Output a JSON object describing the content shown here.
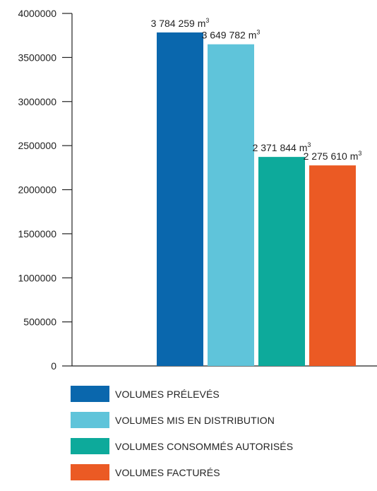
{
  "chart_data": {
    "type": "bar",
    "title": "",
    "xlabel": "",
    "ylabel": "",
    "ylim": [
      0,
      4000000
    ],
    "yticks": [
      0,
      500000,
      1000000,
      1500000,
      2000000,
      2500000,
      3000000,
      3500000,
      4000000
    ],
    "ytick_labels": [
      "0",
      "500000",
      "1000000",
      "1500000",
      "2000000",
      "2500000",
      "3000000",
      "3500000",
      "4000000"
    ],
    "legend_position": "bottom-left",
    "grid": false,
    "unit_suffix": "m",
    "unit_exponent": "3",
    "series": [
      {
        "name": "VOLUMES PRÉLEVÉS",
        "value": 3784259,
        "label": "3 784 259",
        "color": "#0a67ad"
      },
      {
        "name": "VOLUMES MIS EN DISTRIBUTION",
        "value": 3649782,
        "label": "3 649 782",
        "color": "#5fc4da"
      },
      {
        "name": "VOLUMES CONSOMMÉS AUTORISÉS",
        "value": 2371844,
        "label": "2 371 844",
        "color": "#0daa9b"
      },
      {
        "name": "VOLUMES FACTURÉS",
        "value": 2275610,
        "label": "2 275 610",
        "color": "#eb5a24"
      }
    ]
  }
}
